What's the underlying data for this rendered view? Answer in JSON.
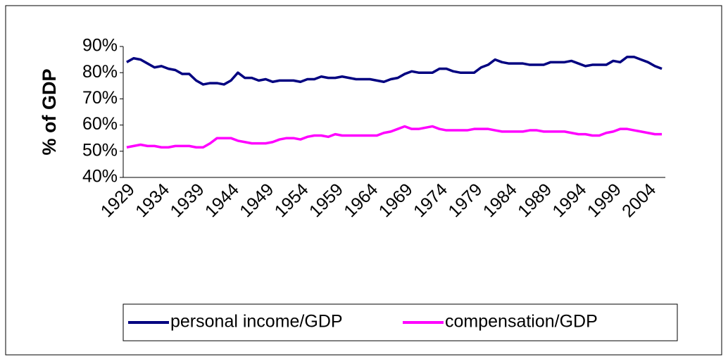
{
  "chart_data": {
    "type": "line",
    "y_label": "% of GDP",
    "categories": [
      "1929",
      null,
      null,
      null,
      null,
      "1934",
      null,
      null,
      null,
      null,
      "1939",
      null,
      null,
      null,
      null,
      "1944",
      null,
      null,
      null,
      null,
      "1949",
      null,
      null,
      null,
      null,
      "1954",
      null,
      null,
      null,
      null,
      "1959",
      null,
      null,
      null,
      null,
      "1964",
      null,
      null,
      null,
      null,
      "1969",
      null,
      null,
      null,
      null,
      "1974",
      null,
      null,
      null,
      null,
      "1979",
      null,
      null,
      null,
      null,
      "1984",
      null,
      null,
      null,
      null,
      "1989",
      null,
      null,
      null,
      null,
      "1994",
      null,
      null,
      null,
      null,
      "1999",
      null,
      null,
      null,
      null,
      "2004",
      null,
      null
    ],
    "series": [
      {
        "name": "personal income/GDP",
        "color": "#000080",
        "values": [
          84,
          85.5,
          85,
          83.5,
          82,
          82.5,
          81.5,
          81,
          79.5,
          79.5,
          77,
          75.5,
          76,
          76,
          75.5,
          77,
          80,
          78,
          78,
          77,
          77.5,
          76.5,
          77,
          77,
          77,
          76.5,
          77.5,
          77.5,
          78.5,
          78,
          78,
          78.5,
          78,
          77.5,
          77.5,
          77.5,
          77,
          76.5,
          77.5,
          78,
          79.5,
          80.5,
          80,
          80,
          80,
          81.5,
          81.5,
          80.5,
          80,
          80,
          80,
          82,
          83,
          85,
          84,
          83.5,
          83.5,
          83.5,
          83,
          83,
          83,
          84,
          84,
          84,
          84.5,
          83.5,
          82.5,
          83,
          83,
          83,
          84.5,
          84,
          86,
          86,
          85,
          84,
          82.5,
          81.5
        ]
      },
      {
        "name": "compensation/GDP",
        "color": "#ff00ff",
        "values": [
          51.5,
          52,
          52.5,
          52,
          52,
          51.5,
          51.5,
          52,
          52,
          52,
          51.5,
          51.5,
          53,
          55,
          55,
          55,
          54,
          53.5,
          53,
          53,
          53,
          53.5,
          54.5,
          55,
          55,
          54.5,
          55.5,
          56,
          56,
          55.5,
          56.5,
          56,
          56,
          56,
          56,
          56,
          56,
          57,
          57.5,
          58.5,
          59.5,
          58.5,
          58.5,
          59,
          59.5,
          58.5,
          58,
          58,
          58,
          58,
          58.5,
          58.5,
          58.5,
          58,
          57.5,
          57.5,
          57.5,
          57.5,
          58,
          58,
          57.5,
          57.5,
          57.5,
          57.5,
          57,
          56.5,
          56.5,
          56,
          56,
          57,
          57.5,
          58.5,
          58.5,
          58,
          57.5,
          57,
          56.5,
          56.5
        ]
      }
    ],
    "ylim": [
      40,
      90
    ],
    "yticks": [
      {
        "value": 40,
        "label": "40%"
      },
      {
        "value": 50,
        "label": "50%"
      },
      {
        "value": 60,
        "label": "60%"
      },
      {
        "value": 70,
        "label": "70%"
      },
      {
        "value": 80,
        "label": "80%"
      },
      {
        "value": 90,
        "label": "90%"
      }
    ],
    "grid": false,
    "legend": "bottom"
  }
}
